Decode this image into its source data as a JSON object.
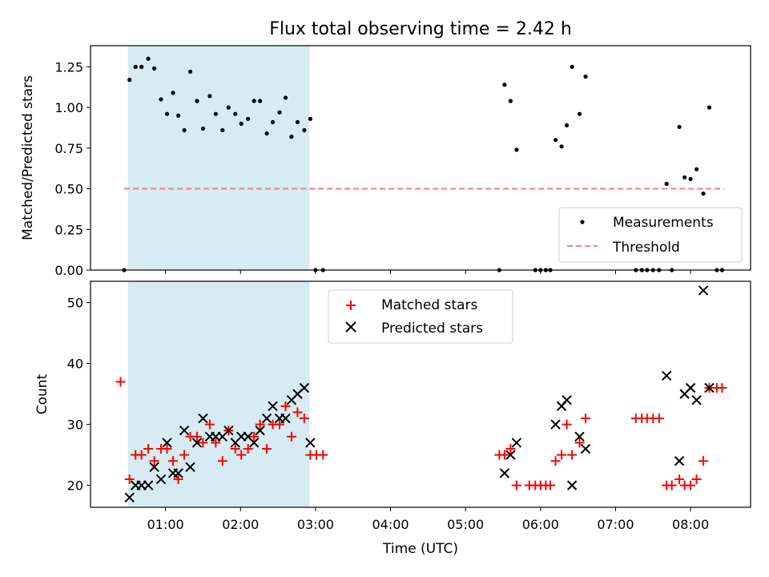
{
  "title": "Flux total observing time = 2.42 h",
  "chart_data": [
    {
      "type": "scatter",
      "ylabel": "Matched/Predicted stars",
      "xlabel": "",
      "xlim": [
        0.0,
        8.8
      ],
      "ylim": [
        0,
        1.38
      ],
      "yticks": [
        0.0,
        0.25,
        0.5,
        0.75,
        1.0,
        1.25
      ],
      "ytick_labels": [
        "0.00",
        "0.25",
        "0.50",
        "0.75",
        "1.00",
        "1.25"
      ],
      "shaded_span": [
        0.5,
        2.92
      ],
      "shaded_color": "#add8e6",
      "legend_position": "lower-right",
      "series": [
        {
          "name": "Measurements",
          "marker": "dot",
          "color": "#000000",
          "points": [
            [
              0.45,
              0.0
            ],
            [
              0.52,
              1.17
            ],
            [
              0.6,
              1.25
            ],
            [
              0.68,
              1.25
            ],
            [
              0.77,
              1.3
            ],
            [
              0.85,
              1.24
            ],
            [
              0.94,
              1.05
            ],
            [
              1.02,
              0.96
            ],
            [
              1.1,
              1.09
            ],
            [
              1.17,
              0.95
            ],
            [
              1.25,
              0.86
            ],
            [
              1.33,
              1.22
            ],
            [
              1.42,
              1.04
            ],
            [
              1.5,
              0.87
            ],
            [
              1.59,
              1.07
            ],
            [
              1.67,
              0.96
            ],
            [
              1.76,
              0.86
            ],
            [
              1.84,
              1.0
            ],
            [
              1.93,
              0.96
            ],
            [
              2.01,
              0.9
            ],
            [
              2.1,
              0.93
            ],
            [
              2.18,
              1.04
            ],
            [
              2.26,
              1.04
            ],
            [
              2.35,
              0.84
            ],
            [
              2.43,
              0.91
            ],
            [
              2.52,
              0.97
            ],
            [
              2.6,
              1.06
            ],
            [
              2.68,
              0.82
            ],
            [
              2.76,
              0.91
            ],
            [
              2.85,
              0.86
            ],
            [
              2.93,
              0.93
            ],
            [
              3.0,
              0.0
            ],
            [
              3.1,
              0.0
            ],
            [
              5.45,
              0.0
            ],
            [
              5.52,
              1.14
            ],
            [
              5.6,
              1.04
            ],
            [
              5.68,
              0.74
            ],
            [
              5.93,
              0.0
            ],
            [
              6.0,
              0.0
            ],
            [
              6.07,
              0.0
            ],
            [
              6.13,
              0.0
            ],
            [
              6.2,
              0.8
            ],
            [
              6.28,
              0.76
            ],
            [
              6.35,
              0.89
            ],
            [
              6.42,
              1.25
            ],
            [
              6.52,
              0.96
            ],
            [
              6.6,
              1.19
            ],
            [
              7.27,
              0.0
            ],
            [
              7.35,
              0.0
            ],
            [
              7.42,
              0.0
            ],
            [
              7.5,
              0.0
            ],
            [
              7.58,
              0.0
            ],
            [
              7.68,
              0.53
            ],
            [
              7.75,
              0.0
            ],
            [
              7.85,
              0.88
            ],
            [
              7.92,
              0.57
            ],
            [
              8.0,
              0.56
            ],
            [
              8.08,
              0.62
            ],
            [
              8.17,
              0.47
            ],
            [
              8.25,
              1.0
            ],
            [
              8.35,
              0.0
            ],
            [
              8.42,
              0.0
            ]
          ]
        },
        {
          "name": "Threshold",
          "marker": "dashed-line",
          "color": "#f08080",
          "points": [
            [
              0.45,
              0.5
            ],
            [
              8.45,
              0.5
            ]
          ]
        }
      ]
    },
    {
      "type": "scatter",
      "ylabel": "Count",
      "xlabel": "Time (UTC)",
      "xlim": [
        0.0,
        8.8
      ],
      "ylim": [
        16.4,
        53.5
      ],
      "yticks": [
        20,
        30,
        40,
        50
      ],
      "ytick_labels": [
        "20",
        "30",
        "40",
        "50"
      ],
      "xticks": [
        1,
        2,
        3,
        4,
        5,
        6,
        7,
        8
      ],
      "xtick_labels": [
        "01:00",
        "02:00",
        "03:00",
        "04:00",
        "05:00",
        "06:00",
        "07:00",
        "08:00"
      ],
      "shaded_span": [
        0.5,
        2.92
      ],
      "shaded_color": "#add8e6",
      "legend_position": "top-center",
      "series": [
        {
          "name": "Matched stars",
          "marker": "plus",
          "color": "#ff0000",
          "points": [
            [
              0.4,
              37
            ],
            [
              0.52,
              21
            ],
            [
              0.6,
              25
            ],
            [
              0.68,
              25
            ],
            [
              0.77,
              26
            ],
            [
              0.85,
              24
            ],
            [
              0.94,
              26
            ],
            [
              1.02,
              26
            ],
            [
              1.1,
              24
            ],
            [
              1.17,
              21
            ],
            [
              1.25,
              25
            ],
            [
              1.33,
              28
            ],
            [
              1.42,
              28
            ],
            [
              1.5,
              27
            ],
            [
              1.59,
              30
            ],
            [
              1.67,
              27
            ],
            [
              1.76,
              24
            ],
            [
              1.84,
              29
            ],
            [
              1.93,
              26
            ],
            [
              2.01,
              25
            ],
            [
              2.1,
              26
            ],
            [
              2.18,
              28
            ],
            [
              2.26,
              30
            ],
            [
              2.35,
              26
            ],
            [
              2.43,
              30
            ],
            [
              2.52,
              30
            ],
            [
              2.6,
              33
            ],
            [
              2.68,
              28
            ],
            [
              2.76,
              32
            ],
            [
              2.85,
              31
            ],
            [
              2.93,
              25
            ],
            [
              3.01,
              25
            ],
            [
              3.1,
              25
            ],
            [
              5.45,
              25
            ],
            [
              5.52,
              25
            ],
            [
              5.6,
              26
            ],
            [
              5.68,
              20
            ],
            [
              5.85,
              20
            ],
            [
              5.93,
              20
            ],
            [
              6.0,
              20
            ],
            [
              6.07,
              20
            ],
            [
              6.13,
              20
            ],
            [
              6.2,
              24
            ],
            [
              6.28,
              25
            ],
            [
              6.35,
              30
            ],
            [
              6.42,
              25
            ],
            [
              6.52,
              27
            ],
            [
              6.6,
              31
            ],
            [
              7.27,
              31
            ],
            [
              7.35,
              31
            ],
            [
              7.42,
              31
            ],
            [
              7.5,
              31
            ],
            [
              7.58,
              31
            ],
            [
              7.68,
              20
            ],
            [
              7.75,
              20
            ],
            [
              7.85,
              21
            ],
            [
              7.92,
              20
            ],
            [
              8.0,
              20
            ],
            [
              8.08,
              21
            ],
            [
              8.17,
              24
            ],
            [
              8.25,
              36
            ],
            [
              8.35,
              36
            ],
            [
              8.42,
              36
            ]
          ]
        },
        {
          "name": "Predicted stars",
          "marker": "x",
          "color": "#000000",
          "points": [
            [
              0.52,
              18
            ],
            [
              0.6,
              20
            ],
            [
              0.68,
              20
            ],
            [
              0.77,
              20
            ],
            [
              0.85,
              23
            ],
            [
              0.94,
              21
            ],
            [
              1.02,
              27
            ],
            [
              1.1,
              22
            ],
            [
              1.17,
              22
            ],
            [
              1.25,
              29
            ],
            [
              1.33,
              23
            ],
            [
              1.42,
              27
            ],
            [
              1.5,
              31
            ],
            [
              1.59,
              28
            ],
            [
              1.67,
              28
            ],
            [
              1.76,
              28
            ],
            [
              1.84,
              29
            ],
            [
              1.93,
              27
            ],
            [
              2.01,
              28
            ],
            [
              2.1,
              28
            ],
            [
              2.18,
              27
            ],
            [
              2.26,
              29
            ],
            [
              2.35,
              31
            ],
            [
              2.43,
              33
            ],
            [
              2.52,
              31
            ],
            [
              2.6,
              31
            ],
            [
              2.68,
              34
            ],
            [
              2.76,
              35
            ],
            [
              2.85,
              36
            ],
            [
              2.93,
              27
            ],
            [
              5.52,
              22
            ],
            [
              5.6,
              25
            ],
            [
              5.68,
              27
            ],
            [
              6.2,
              30
            ],
            [
              6.28,
              33
            ],
            [
              6.35,
              34
            ],
            [
              6.42,
              20
            ],
            [
              6.52,
              28
            ],
            [
              6.6,
              26
            ],
            [
              7.68,
              38
            ],
            [
              7.85,
              24
            ],
            [
              7.92,
              35
            ],
            [
              8.0,
              36
            ],
            [
              8.08,
              34
            ],
            [
              8.17,
              52
            ],
            [
              8.25,
              36
            ]
          ]
        }
      ]
    }
  ]
}
